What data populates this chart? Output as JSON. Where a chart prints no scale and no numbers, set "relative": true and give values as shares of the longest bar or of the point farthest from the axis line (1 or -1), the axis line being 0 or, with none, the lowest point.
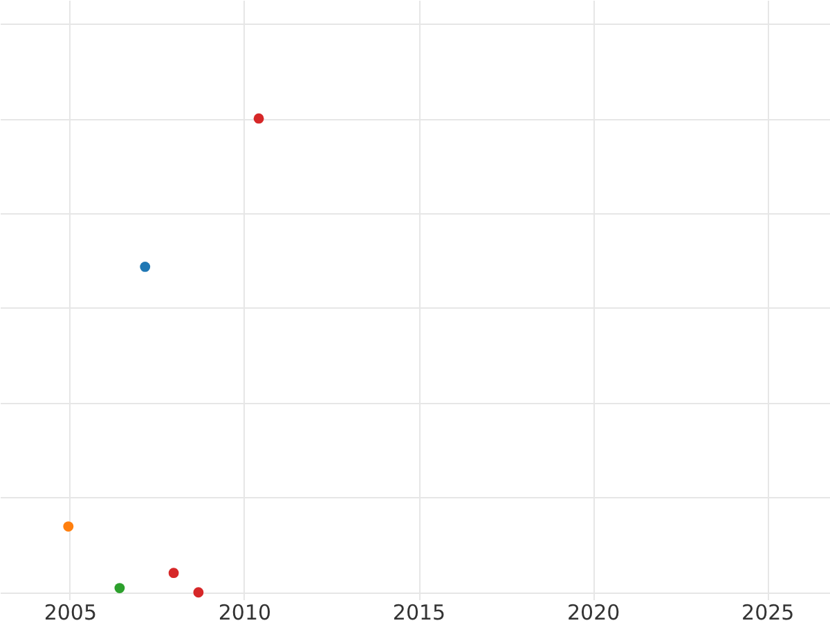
{
  "chart_data": {
    "type": "scatter",
    "relative": true,
    "x": [
      2010.42,
      2007.16,
      2004.96,
      2006.43,
      2007.98,
      2008.69
    ],
    "values": [
      1,
      0.687,
      0.139,
      0.009,
      0.041,
      0
    ],
    "colors": [
      "#d62728",
      "#1f77b4",
      "#ff7f0e",
      "#2ca02c",
      "#d62728",
      "#d62728"
    ],
    "xlim": [
      2003,
      2026.8
    ],
    "xticks": [
      2005,
      2010,
      2015,
      2020,
      2025
    ],
    "grid": true,
    "marker": "circle",
    "legend": false
  }
}
